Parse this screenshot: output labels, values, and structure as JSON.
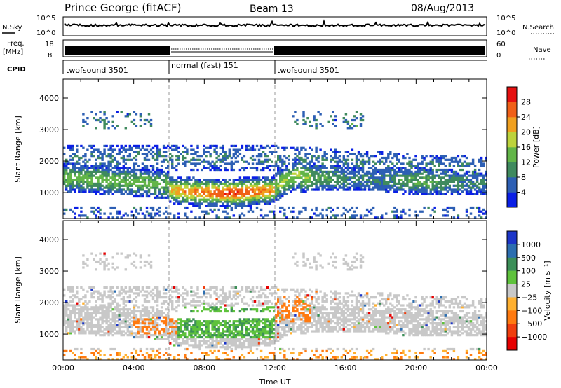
{
  "header": {
    "station": "Prince George (fitACF)",
    "beam": "Beam 13",
    "date": "08/Aug/2013"
  },
  "summary_panels": {
    "nsky_label": "N.Sky",
    "nsearch_label": "N.Search",
    "noise_ticks": [
      "10^5",
      "10^0"
    ],
    "freq_label": "Freq.",
    "freq_unit": "[MHz]",
    "freq_ticks": [
      "18",
      "8"
    ],
    "nave_label": "Nave",
    "nave_ticks": [
      "60",
      "0"
    ],
    "cpid_label": "CPID",
    "cpid_segments": [
      {
        "label": "twofsound 3501",
        "start_hr": 0,
        "end_hr": 6
      },
      {
        "label": "normal (fast) 151",
        "start_hr": 6,
        "end_hr": 12
      },
      {
        "label": "twofsound 3501",
        "start_hr": 12,
        "end_hr": 24
      }
    ]
  },
  "chart_data": [
    {
      "type": "heatmap",
      "quantity": "power",
      "xlabel": "",
      "ylabel": "Slant Range [km]",
      "xlim": [
        0,
        24
      ],
      "ylim": [
        180,
        4600
      ],
      "ytick_values": [
        1000,
        2000,
        3000,
        4000
      ],
      "ytick_labels": [
        "1000",
        "2000",
        "3000",
        "4000"
      ],
      "colorbar_label": "Power [dB]",
      "colorbar_ticks": [
        "4",
        "8",
        "12",
        "16",
        "20",
        "24",
        "28"
      ],
      "colorbar_range": [
        0,
        32
      ],
      "colorbar_colors": [
        "#0a1fe6",
        "#2d5fb4",
        "#3f8a5e",
        "#62b548",
        "#bdd33c",
        "#f0a020",
        "#f06018",
        "#e61010"
      ],
      "mode_change_hours": [
        6,
        12
      ],
      "grid": false
    },
    {
      "type": "heatmap",
      "quantity": "velocity",
      "xlabel": "Time UT",
      "ylabel": "Slant Range [km]",
      "xlim": [
        0,
        24
      ],
      "ylim": [
        180,
        4600
      ],
      "ytick_values": [
        1000,
        2000,
        3000,
        4000
      ],
      "ytick_labels": [
        "1000",
        "2000",
        "3000",
        "4000"
      ],
      "xtick_values": [
        0,
        4,
        8,
        12,
        16,
        20,
        24
      ],
      "xtick_labels": [
        "00:00",
        "04:00",
        "08:00",
        "12:00",
        "16:00",
        "20:00",
        "00:00"
      ],
      "colorbar_label": "Velocity [m s⁻¹]",
      "colorbar_ticks": [
        "1000",
        "500",
        "100",
        "25",
        "−25",
        "−100",
        "−500",
        "−1000"
      ],
      "colorbar_colors": [
        "#1c35c8",
        "#2c6eb0",
        "#3c8f58",
        "#5ec23c",
        "#c8c8c8",
        "#ffb030",
        "#ff7a10",
        "#f03e0e",
        "#e60000"
      ],
      "mode_change_hours": [
        6,
        12
      ],
      "grid": false
    }
  ]
}
